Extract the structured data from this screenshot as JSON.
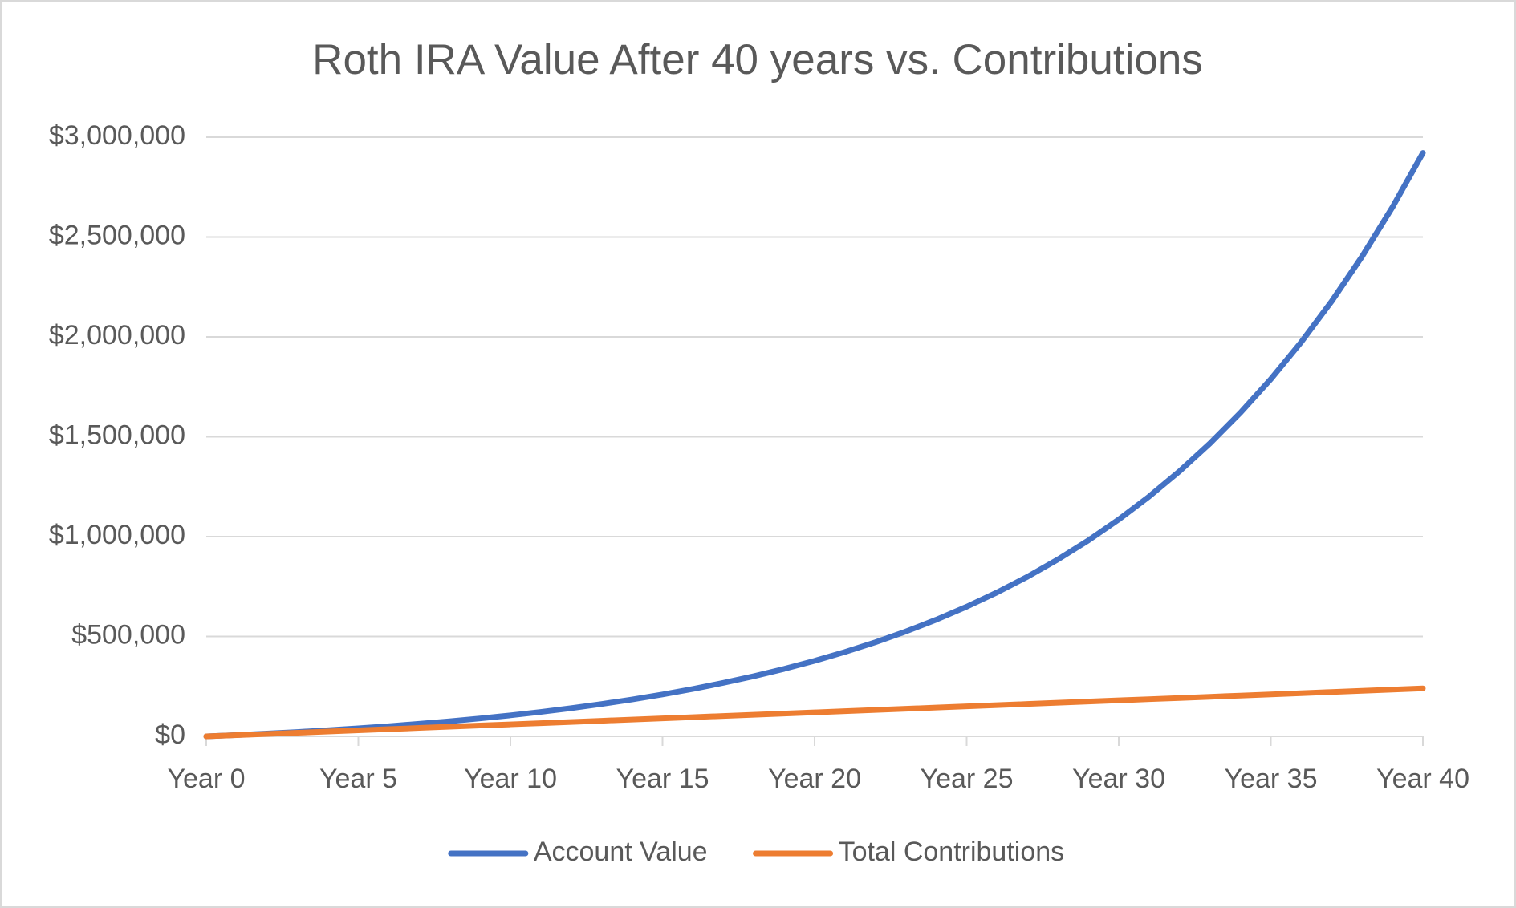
{
  "chart_data": {
    "type": "line",
    "title": "Roth IRA Value After 40 years vs. Contributions",
    "categories": [
      "Year 0",
      null,
      null,
      null,
      null,
      "Year 5",
      null,
      null,
      null,
      null,
      "Year 10",
      null,
      null,
      null,
      null,
      "Year 15",
      null,
      null,
      null,
      null,
      "Year 20",
      null,
      null,
      null,
      null,
      "Year 25",
      null,
      null,
      null,
      null,
      "Year 30",
      null,
      null,
      null,
      null,
      "Year 35",
      null,
      null,
      null,
      null,
      "Year 40"
    ],
    "series": [
      {
        "name": "Account Value",
        "color": "#4472c4",
        "values": [
          0,
          6600,
          13860,
          21846,
          30631,
          40294,
          50923,
          62615,
          75477,
          89625,
          105187,
          122306,
          141136,
          161850,
          184635,
          209698,
          237268,
          267595,
          300955,
          337650,
          378015,
          422417,
          471258,
          524984,
          584082,
          649091,
          720600,
          799260,
          885786,
          980964,
          1085661,
          1200827,
          1327509,
          1466860,
          1620146,
          1788761,
          1974237,
          2178261,
          2402687,
          2649555,
          2921111
        ]
      },
      {
        "name": "Total Contributions",
        "color": "#ed7d31",
        "values": [
          0,
          6000,
          12000,
          18000,
          24000,
          30000,
          36000,
          42000,
          48000,
          54000,
          60000,
          66000,
          72000,
          78000,
          84000,
          90000,
          96000,
          102000,
          108000,
          114000,
          120000,
          126000,
          132000,
          138000,
          144000,
          150000,
          156000,
          162000,
          168000,
          174000,
          180000,
          186000,
          192000,
          198000,
          204000,
          210000,
          216000,
          222000,
          228000,
          234000,
          240000
        ]
      }
    ],
    "ylim": [
      0,
      3000000
    ],
    "yticks": [
      {
        "value": 0,
        "label": "$0"
      },
      {
        "value": 500000,
        "label": "$500,000"
      },
      {
        "value": 1000000,
        "label": "$1,000,000"
      },
      {
        "value": 1500000,
        "label": "$1,500,000"
      },
      {
        "value": 2000000,
        "label": "$2,000,000"
      },
      {
        "value": 2500000,
        "label": "$2,500,000"
      },
      {
        "value": 3000000,
        "label": "$3,000,000"
      }
    ],
    "grid": true,
    "legend": "bottom"
  }
}
